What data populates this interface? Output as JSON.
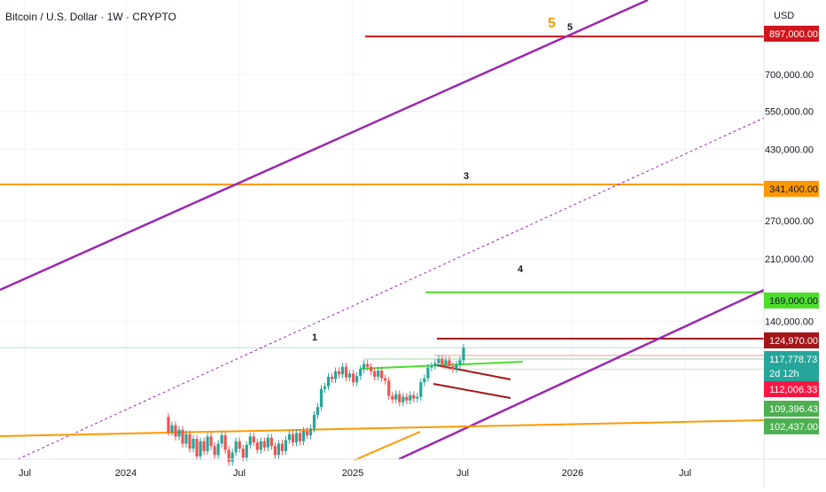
{
  "header": {
    "title": "Bitcoin / U.S. Dollar · 1W · CRYPTO",
    "currency": "USD"
  },
  "colors": {
    "up": "#26a69a",
    "down": "#ef5350",
    "purple": "#9c27b0",
    "orange": "#ff9800",
    "green": "#4cde2b",
    "red": "#d0161d",
    "darkred": "#a4161a",
    "grid": "#f0f3fa",
    "axis_text": "#131722"
  },
  "chart_data": {
    "type": "candlestick",
    "title": "Bitcoin / U.S. Dollar · 1W · CRYPTO",
    "yscale": "log",
    "x_ticks": [
      "Jul",
      "2024",
      "Jul",
      "2025",
      "Jul",
      "2026",
      "Jul"
    ],
    "y_ticks": [
      "700,000.00",
      "550,000.00",
      "430,000.00",
      "270,000.00",
      "210,000.00",
      "140,000.00"
    ],
    "price_labels": [
      {
        "text": "897,000.00",
        "role": "level",
        "color": "#d0161d"
      },
      {
        "text": "341,400.00",
        "role": "level",
        "color": "#ff9800"
      },
      {
        "text": "169,000.00",
        "role": "level",
        "color": "#4cde2b"
      },
      {
        "text": "124,970.00",
        "role": "level",
        "color": "#a4161a"
      },
      {
        "text": "117,778.73",
        "role": "last-price",
        "color": "#26a69a"
      },
      {
        "text": "2d 12h",
        "role": "countdown",
        "color": "#26a69a"
      },
      {
        "text": "112,006.33",
        "role": "level",
        "color": "#ff1744"
      },
      {
        "text": "109,396.43",
        "role": "level",
        "color": "#4caf50"
      },
      {
        "text": "102,437.00",
        "role": "level",
        "color": "#4caf50"
      }
    ],
    "horizontal_levels": [
      897000,
      341400,
      169000,
      124970,
      117778.73,
      112006.33,
      109396.43,
      102437
    ],
    "wave_labels": [
      "1",
      "3",
      "4",
      "5",
      "5"
    ],
    "candles": [
      {
        "o": 75000,
        "c": 68000
      },
      {
        "o": 68000,
        "c": 71000
      },
      {
        "o": 71000,
        "c": 66000
      },
      {
        "o": 66000,
        "c": 69000
      },
      {
        "o": 69000,
        "c": 63000
      },
      {
        "o": 63000,
        "c": 67000
      },
      {
        "o": 67000,
        "c": 61000
      },
      {
        "o": 61000,
        "c": 65000
      },
      {
        "o": 65000,
        "c": 58000
      },
      {
        "o": 58000,
        "c": 64000
      },
      {
        "o": 64000,
        "c": 60000
      },
      {
        "o": 60000,
        "c": 66000
      },
      {
        "o": 66000,
        "c": 62000
      },
      {
        "o": 62000,
        "c": 58500
      },
      {
        "o": 58500,
        "c": 63000
      },
      {
        "o": 63000,
        "c": 66500
      },
      {
        "o": 66500,
        "c": 60500
      },
      {
        "o": 60500,
        "c": 56000
      },
      {
        "o": 56000,
        "c": 59500
      },
      {
        "o": 59500,
        "c": 64000
      },
      {
        "o": 64000,
        "c": 61000
      },
      {
        "o": 61000,
        "c": 57500
      },
      {
        "o": 57500,
        "c": 62500
      },
      {
        "o": 62500,
        "c": 66000
      },
      {
        "o": 66000,
        "c": 63500
      },
      {
        "o": 63500,
        "c": 60500
      },
      {
        "o": 60500,
        "c": 64000
      },
      {
        "o": 64000,
        "c": 61500
      },
      {
        "o": 61500,
        "c": 65500
      },
      {
        "o": 65500,
        "c": 62000
      },
      {
        "o": 62000,
        "c": 58500
      },
      {
        "o": 58500,
        "c": 63000
      },
      {
        "o": 63000,
        "c": 60000
      },
      {
        "o": 60000,
        "c": 64500
      },
      {
        "o": 64500,
        "c": 67000
      },
      {
        "o": 67000,
        "c": 63500
      },
      {
        "o": 63500,
        "c": 67500
      },
      {
        "o": 67500,
        "c": 64000
      },
      {
        "o": 64000,
        "c": 68500
      },
      {
        "o": 68500,
        "c": 66500
      },
      {
        "o": 66500,
        "c": 69500
      },
      {
        "o": 69500,
        "c": 76000
      },
      {
        "o": 76000,
        "c": 80000
      },
      {
        "o": 80000,
        "c": 90000
      },
      {
        "o": 90000,
        "c": 91500
      },
      {
        "o": 91500,
        "c": 97500
      },
      {
        "o": 97500,
        "c": 96000
      },
      {
        "o": 96000,
        "c": 101000
      },
      {
        "o": 101000,
        "c": 99000
      },
      {
        "o": 99000,
        "c": 104000
      },
      {
        "o": 104000,
        "c": 97000
      },
      {
        "o": 97000,
        "c": 99500
      },
      {
        "o": 99500,
        "c": 94000
      },
      {
        "o": 94000,
        "c": 98000
      },
      {
        "o": 98000,
        "c": 102500
      },
      {
        "o": 102500,
        "c": 106000
      },
      {
        "o": 106000,
        "c": 104000
      },
      {
        "o": 104000,
        "c": 101000
      },
      {
        "o": 101000,
        "c": 97500
      },
      {
        "o": 97500,
        "c": 101500
      },
      {
        "o": 101500,
        "c": 96500
      },
      {
        "o": 96500,
        "c": 95000
      },
      {
        "o": 95000,
        "c": 86000
      },
      {
        "o": 86000,
        "c": 84000
      },
      {
        "o": 84000,
        "c": 87000
      },
      {
        "o": 87000,
        "c": 82500
      },
      {
        "o": 82500,
        "c": 85500
      },
      {
        "o": 85500,
        "c": 83500
      },
      {
        "o": 83500,
        "c": 86500
      },
      {
        "o": 86500,
        "c": 84500
      },
      {
        "o": 84500,
        "c": 85500
      },
      {
        "o": 85500,
        "c": 94000
      },
      {
        "o": 94000,
        "c": 96500
      },
      {
        "o": 96500,
        "c": 103500
      },
      {
        "o": 103500,
        "c": 104500
      },
      {
        "o": 104500,
        "c": 106500
      },
      {
        "o": 106500,
        "c": 109500
      },
      {
        "o": 109500,
        "c": 105500
      },
      {
        "o": 105500,
        "c": 108500
      },
      {
        "o": 108500,
        "c": 104500
      },
      {
        "o": 104500,
        "c": 102500
      },
      {
        "o": 102500,
        "c": 105500
      },
      {
        "o": 105500,
        "c": 108500
      },
      {
        "o": 108500,
        "c": 117778.73
      }
    ]
  }
}
